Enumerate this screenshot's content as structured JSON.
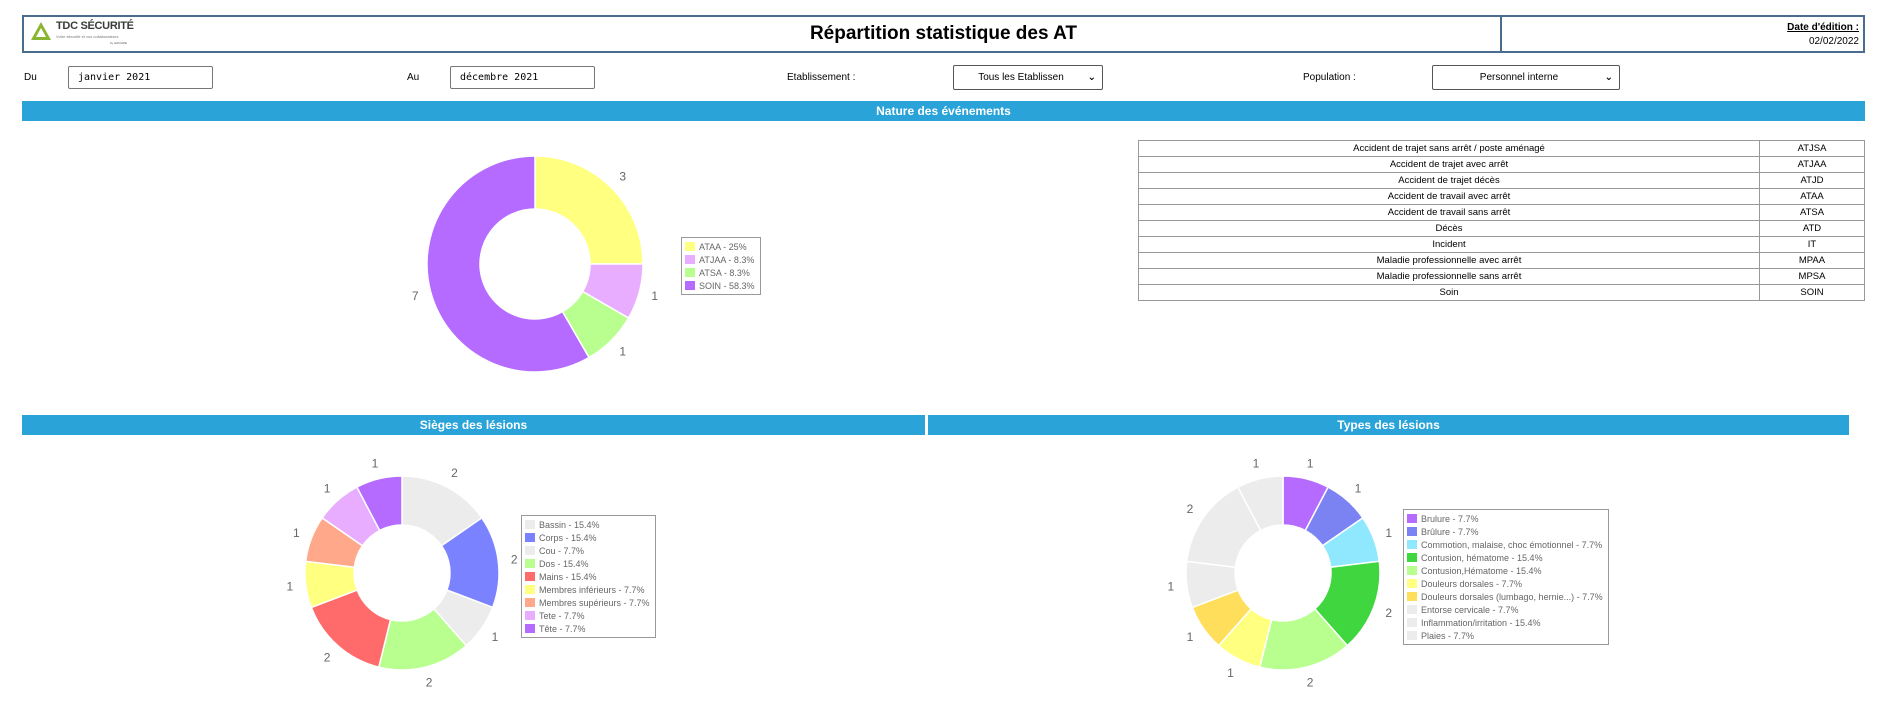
{
  "header": {
    "logo_name": "TDC SÉCURITÉ",
    "logo_tagline": "Votre sécurité et vos collaborateurs",
    "logo_sub": "by GROUPE",
    "title": "Répartition statistique des AT",
    "date_label": "Date d'édition :",
    "date_value": "02/02/2022"
  },
  "filters": {
    "from_label": "Du",
    "from_value": "janvier 2021",
    "to_label": "Au",
    "to_value": "décembre 2021",
    "establishment_label": "Etablissement :",
    "establishment_value": "Tous les Etablissen",
    "population_label": "Population :",
    "population_value": "Personnel interne"
  },
  "sections": {
    "nature": "Nature des événements",
    "sieges": "Sièges des lésions",
    "types": "Types des lésions"
  },
  "codes_table": [
    {
      "label": "Accident de trajet sans arrêt / poste aménagé",
      "code": "ATJSA"
    },
    {
      "label": "Accident de trajet avec arrêt",
      "code": "ATJAA"
    },
    {
      "label": "Accident de trajet décès",
      "code": "ATJD"
    },
    {
      "label": "Accident de travail avec arrêt",
      "code": "ATAA"
    },
    {
      "label": "Accident de travail sans arrêt",
      "code": "ATSA"
    },
    {
      "label": "Décès",
      "code": "ATD"
    },
    {
      "label": "Incident",
      "code": "IT"
    },
    {
      "label": "Maladie professionnelle avec arrêt",
      "code": "MPAA"
    },
    {
      "label": "Maladie professionnelle sans arrêt",
      "code": "MPSA"
    },
    {
      "label": "Soin",
      "code": "SOIN"
    }
  ],
  "chart_data": [
    {
      "type": "pie",
      "slices": [
        {
          "legend": "ATAA - 25%",
          "value": 3,
          "label": "3",
          "color": "#ffff80"
        },
        {
          "legend": "ATJAA - 8.3%",
          "value": 1,
          "label": "1",
          "color": "#e8adff"
        },
        {
          "legend": "ATSA - 8.3%",
          "value": 1,
          "label": "1",
          "color": "#b8ff90"
        },
        {
          "legend": "SOIN - 58.3%",
          "value": 7,
          "label": "7",
          "color": "#b56bff"
        }
      ]
    },
    {
      "type": "pie",
      "slices": [
        {
          "legend": "Bassin - 15.4%",
          "value": 2,
          "label": "2",
          "color": "#ececec"
        },
        {
          "legend": "Corps - 15.4%",
          "value": 2,
          "label": "2",
          "color": "#7b82ff"
        },
        {
          "legend": "Cou - 7.7%",
          "value": 1,
          "label": "1",
          "color": "#ececec"
        },
        {
          "legend": "Dos - 15.4%",
          "value": 2,
          "label": "2",
          "color": "#b8ff90"
        },
        {
          "legend": "Mains - 15.4%",
          "value": 2,
          "label": "2",
          "color": "#ff6b6b"
        },
        {
          "legend": "Membres inférieurs - 7.7%",
          "value": 1,
          "label": "1",
          "color": "#ffff80"
        },
        {
          "legend": "Membres supérieurs - 7.7%",
          "value": 1,
          "label": "1",
          "color": "#ffa88a"
        },
        {
          "legend": "Tete - 7.7%",
          "value": 1,
          "label": "1",
          "color": "#e8adff"
        },
        {
          "legend": "Tête - 7.7%",
          "value": 1,
          "label": "1",
          "color": "#b56bff"
        }
      ]
    },
    {
      "type": "pie",
      "slices": [
        {
          "legend": "Brulure - 7.7%",
          "value": 1,
          "label": "1",
          "color": "#b56bff"
        },
        {
          "legend": "Brûlure - 7.7%",
          "value": 1,
          "label": "1",
          "color": "#7b82f2"
        },
        {
          "legend": "Commotion, malaise, choc émotionnel - 7.7%",
          "value": 1,
          "label": "1",
          "color": "#90e8ff"
        },
        {
          "legend": "Contusion, hématome - 15.4%",
          "value": 2,
          "label": "2",
          "color": "#3fd63f"
        },
        {
          "legend": "Contusion,Hématome - 15.4%",
          "value": 2,
          "label": "2",
          "color": "#b8ff90"
        },
        {
          "legend": "Douleurs dorsales - 7.7%",
          "value": 1,
          "label": "1",
          "color": "#ffff80"
        },
        {
          "legend": "Douleurs dorsales (lumbago, hernie...) - 7.7%",
          "value": 1,
          "label": "1",
          "color": "#ffde5c"
        },
        {
          "legend": "Entorse cervicale - 7.7%",
          "value": 1,
          "label": "1",
          "color": "#ececec"
        },
        {
          "legend": "Inflammation/irritation - 15.4%",
          "value": 2,
          "label": "2",
          "color": "#ececec"
        },
        {
          "legend": "Plaies - 7.7%",
          "value": 1,
          "label": "1",
          "color": "#ececec"
        }
      ]
    }
  ]
}
